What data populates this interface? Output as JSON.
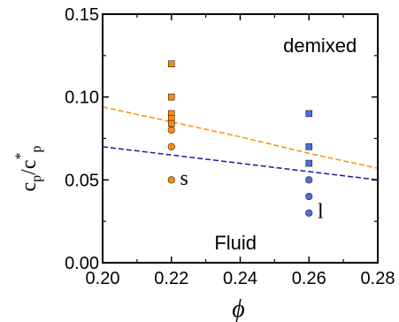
{
  "chart_data": {
    "type": "scatter",
    "xlabel": "ϕ",
    "ylabel": {
      "base": "c",
      "sub": "p",
      "slash": "/c",
      "sup": "*",
      "sub2": "p"
    },
    "xlim": [
      0.2,
      0.28
    ],
    "ylim": [
      0.0,
      0.15
    ],
    "xticks": [
      0.2,
      0.22,
      0.24,
      0.26,
      0.28
    ],
    "yticks": [
      0.0,
      0.05,
      0.1,
      0.15
    ],
    "xtick_labels": [
      "0.20",
      "0.22",
      "0.24",
      "0.26",
      "0.28"
    ],
    "ytick_labels": [
      "0.00",
      "0.05",
      "0.10",
      "0.15"
    ],
    "grid": false,
    "colors": {
      "orange": "#ff8c00",
      "blue": "#4a6fd8",
      "orange_line": "#ff8c00",
      "blue_line": "#1a1aa0"
    },
    "series": [
      {
        "marker": "square",
        "color": "orange",
        "points": [
          [
            0.22,
            0.12
          ],
          [
            0.22,
            0.1
          ],
          [
            0.22,
            0.09
          ],
          [
            0.22,
            0.087
          ],
          [
            0.22,
            0.084
          ]
        ]
      },
      {
        "marker": "circle",
        "color": "orange",
        "points": [
          [
            0.22,
            0.08
          ],
          [
            0.22,
            0.07
          ],
          [
            0.22,
            0.05
          ]
        ]
      },
      {
        "marker": "square",
        "color": "blue",
        "points": [
          [
            0.26,
            0.09
          ],
          [
            0.26,
            0.07
          ],
          [
            0.26,
            0.06
          ]
        ]
      },
      {
        "marker": "circle",
        "color": "blue",
        "points": [
          [
            0.26,
            0.05
          ],
          [
            0.26,
            0.04
          ],
          [
            0.26,
            0.03
          ]
        ]
      }
    ],
    "lines": [
      {
        "color": "orange_line",
        "style": "dashed",
        "points": [
          [
            0.2,
            0.094
          ],
          [
            0.22,
            0.085
          ],
          [
            0.24,
            0.076
          ],
          [
            0.26,
            0.066
          ],
          [
            0.28,
            0.057
          ]
        ]
      },
      {
        "color": "blue_line",
        "style": "dashed",
        "points": [
          [
            0.2,
            0.07
          ],
          [
            0.22,
            0.065
          ],
          [
            0.24,
            0.06
          ],
          [
            0.26,
            0.055
          ],
          [
            0.28,
            0.05
          ]
        ]
      }
    ],
    "annotations": [
      {
        "text": "demixed",
        "x": 0.2525,
        "y": 0.127,
        "kind": "region"
      },
      {
        "text": "Fluid",
        "x": 0.2325,
        "y": 0.008,
        "kind": "region"
      },
      {
        "text": "s",
        "x": 0.2225,
        "y": 0.047,
        "kind": "point"
      },
      {
        "text": "l",
        "x": 0.2625,
        "y": 0.027,
        "kind": "point"
      }
    ]
  }
}
